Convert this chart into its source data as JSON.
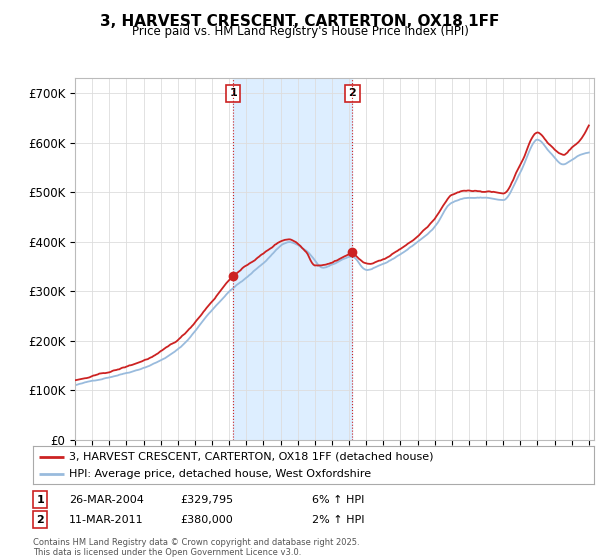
{
  "title": "3, HARVEST CRESCENT, CARTERTON, OX18 1FF",
  "subtitle": "Price paid vs. HM Land Registry's House Price Index (HPI)",
  "ylim": [
    0,
    730000
  ],
  "yticks": [
    0,
    100000,
    200000,
    300000,
    400000,
    500000,
    600000,
    700000
  ],
  "ytick_labels": [
    "£0",
    "£100K",
    "£200K",
    "£300K",
    "£400K",
    "£500K",
    "£600K",
    "£700K"
  ],
  "sale1_year": 2004.23,
  "sale1_price": 329795,
  "sale2_year": 2011.19,
  "sale2_price": 380000,
  "legend_line1": "3, HARVEST CRESCENT, CARTERTON, OX18 1FF (detached house)",
  "legend_line2": "HPI: Average price, detached house, West Oxfordshire",
  "table_row1": [
    "1",
    "26-MAR-2004",
    "£329,795",
    "6% ↑ HPI"
  ],
  "table_row2": [
    "2",
    "11-MAR-2011",
    "£380,000",
    "2% ↑ HPI"
  ],
  "footer": "Contains HM Land Registry data © Crown copyright and database right 2025.\nThis data is licensed under the Open Government Licence v3.0.",
  "red_color": "#cc2222",
  "blue_color": "#99bbdd",
  "shade_color": "#ddeeff",
  "grid_color": "#dddddd",
  "plot_bg": "#ffffff"
}
